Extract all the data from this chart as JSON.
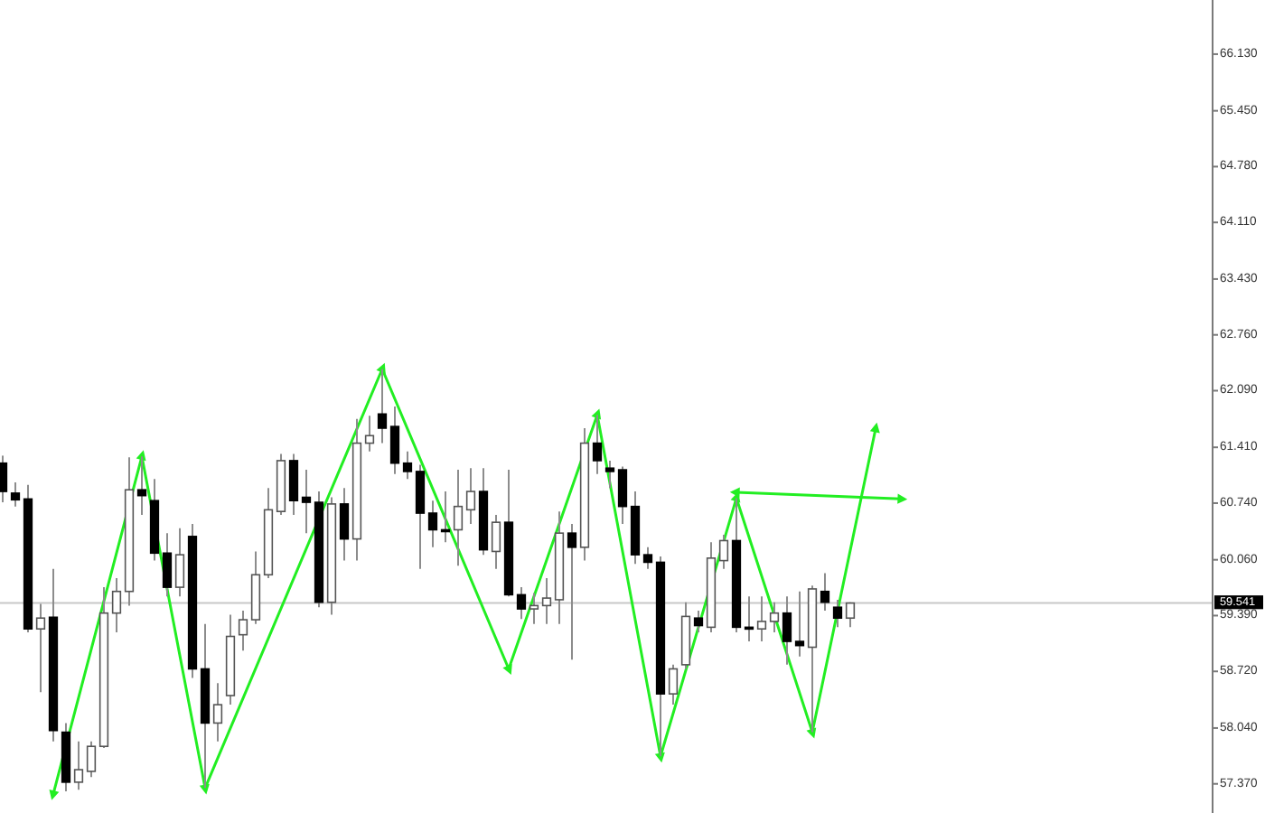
{
  "chart_data": {
    "type": "candlestick",
    "categories": [
      null,
      null,
      null,
      null,
      null,
      null,
      null,
      null,
      null,
      null,
      null,
      null,
      null,
      null,
      null,
      null,
      null,
      null,
      null,
      null,
      null,
      null,
      null,
      null,
      null,
      null,
      null,
      null,
      null,
      null,
      null,
      null,
      null,
      null,
      null,
      null,
      null,
      null,
      null,
      null,
      null,
      null,
      null,
      null,
      null,
      null,
      null,
      null,
      null,
      null,
      null,
      null,
      null,
      null,
      null,
      null,
      null,
      null,
      null,
      null,
      null,
      null,
      null,
      null,
      null,
      null,
      null,
      null,
      null,
      null,
      null,
      null,
      null,
      null,
      null,
      null,
      null,
      null,
      null,
      null,
      null,
      null,
      null,
      null,
      null,
      null,
      null,
      null,
      null,
      null,
      null,
      null,
      null,
      null,
      null,
      null
    ],
    "ohlc": [
      [
        61.22,
        61.31,
        60.75,
        60.88
      ],
      [
        60.86,
        60.99,
        60.7,
        60.78
      ],
      [
        60.79,
        60.96,
        59.19,
        59.23
      ],
      [
        59.23,
        59.53,
        58.47,
        59.36
      ],
      [
        59.37,
        59.95,
        57.88,
        58.01
      ],
      [
        57.99,
        58.1,
        57.28,
        57.39
      ],
      [
        57.39,
        57.88,
        57.3,
        57.54
      ],
      [
        57.52,
        57.88,
        57.45,
        57.82
      ],
      [
        57.82,
        59.73,
        57.8,
        59.42
      ],
      [
        59.42,
        59.84,
        59.19,
        59.68
      ],
      [
        59.68,
        61.29,
        59.51,
        60.9
      ],
      [
        60.9,
        61.3,
        60.6,
        60.83
      ],
      [
        60.77,
        61.03,
        60.05,
        60.14
      ],
      [
        60.14,
        60.38,
        59.62,
        59.73
      ],
      [
        59.73,
        60.44,
        59.62,
        60.12
      ],
      [
        60.34,
        60.49,
        58.64,
        58.75
      ],
      [
        58.75,
        59.29,
        57.32,
        58.1
      ],
      [
        58.1,
        58.58,
        57.88,
        58.32
      ],
      [
        58.43,
        59.4,
        58.32,
        59.14
      ],
      [
        59.16,
        59.45,
        58.97,
        59.34
      ],
      [
        59.34,
        60.16,
        59.29,
        59.88
      ],
      [
        59.88,
        60.92,
        59.84,
        60.66
      ],
      [
        60.64,
        61.33,
        60.6,
        61.25
      ],
      [
        61.25,
        61.33,
        60.6,
        60.77
      ],
      [
        60.81,
        61.14,
        60.38,
        60.75
      ],
      [
        60.75,
        60.88,
        59.49,
        59.55
      ],
      [
        59.55,
        60.81,
        59.4,
        60.73
      ],
      [
        60.73,
        60.92,
        60.05,
        60.31
      ],
      [
        60.31,
        61.75,
        60.05,
        61.46
      ],
      [
        61.46,
        61.79,
        61.36,
        61.55
      ],
      [
        61.81,
        62.35,
        61.46,
        61.64
      ],
      [
        61.66,
        61.9,
        61.09,
        61.22
      ],
      [
        61.22,
        61.36,
        61.03,
        61.12
      ],
      [
        61.12,
        61.2,
        59.95,
        60.62
      ],
      [
        60.62,
        60.77,
        60.21,
        60.42
      ],
      [
        60.42,
        60.88,
        60.27,
        60.4
      ],
      [
        60.42,
        61.14,
        59.99,
        60.7
      ],
      [
        60.66,
        61.16,
        60.49,
        60.88
      ],
      [
        60.88,
        61.16,
        60.12,
        60.18
      ],
      [
        60.16,
        60.6,
        59.95,
        60.51
      ],
      [
        60.51,
        61.14,
        59.62,
        59.64
      ],
      [
        59.64,
        59.73,
        59.35,
        59.47
      ],
      [
        59.47,
        59.66,
        59.29,
        59.51
      ],
      [
        59.51,
        59.84,
        59.29,
        59.6
      ],
      [
        59.58,
        60.64,
        59.29,
        60.38
      ],
      [
        60.38,
        60.49,
        58.86,
        60.21
      ],
      [
        60.21,
        61.64,
        60.05,
        61.46
      ],
      [
        61.46,
        61.8,
        61.09,
        61.25
      ],
      [
        61.16,
        61.25,
        60.92,
        61.12
      ],
      [
        61.14,
        61.18,
        60.49,
        60.7
      ],
      [
        60.7,
        60.88,
        60.01,
        60.12
      ],
      [
        60.12,
        60.21,
        59.95,
        60.03
      ],
      [
        60.03,
        60.1,
        57.7,
        58.45
      ],
      [
        58.45,
        58.8,
        58.32,
        58.75
      ],
      [
        58.8,
        59.55,
        58.75,
        59.38
      ],
      [
        59.36,
        59.45,
        59.19,
        59.27
      ],
      [
        59.25,
        60.27,
        59.19,
        60.08
      ],
      [
        60.05,
        60.36,
        59.95,
        60.29
      ],
      [
        60.29,
        60.8,
        59.19,
        59.25
      ],
      [
        59.25,
        59.62,
        59.08,
        59.23
      ],
      [
        59.23,
        59.62,
        59.08,
        59.32
      ],
      [
        59.32,
        59.55,
        59.19,
        59.42
      ],
      [
        59.42,
        59.62,
        58.8,
        59.08
      ],
      [
        59.08,
        59.68,
        58.9,
        59.03
      ],
      [
        59.01,
        59.75,
        57.99,
        59.71
      ],
      [
        59.68,
        59.9,
        59.45,
        59.55
      ],
      [
        59.49,
        59.58,
        59.25,
        59.36
      ],
      [
        59.36,
        59.55,
        59.25,
        59.54
      ],
      null,
      null,
      null,
      null,
      null,
      null,
      null,
      null,
      null,
      null,
      null,
      null,
      null,
      null,
      null,
      null,
      null,
      null,
      null,
      null,
      null,
      null,
      null,
      null,
      null,
      null,
      null,
      null
    ],
    "series": [
      {
        "type": "line",
        "color": "#22ee22",
        "marker": "triangle",
        "values": [
          null,
          null,
          null,
          null,
          57.25,
          null,
          null,
          null,
          null,
          null,
          null,
          61.3,
          null,
          null,
          null,
          null,
          57.32,
          null,
          null,
          null,
          null,
          null,
          null,
          null,
          null,
          null,
          null,
          null,
          null,
          null,
          62.35,
          null,
          null,
          null,
          null,
          null,
          null,
          null,
          null,
          null,
          58.75,
          null,
          null,
          null,
          null,
          null,
          null,
          61.8,
          null,
          null,
          null,
          null,
          57.7,
          null,
          null,
          null,
          null,
          null,
          60.8,
          null,
          null,
          null,
          null,
          null,
          57.99,
          null,
          null,
          null,
          null,
          61.63,
          null,
          null,
          null,
          null,
          null,
          null,
          null,
          null,
          null,
          null,
          null,
          null,
          null,
          null,
          null,
          null,
          null,
          null,
          null,
          null,
          null,
          null,
          null,
          null,
          null,
          null
        ]
      },
      {
        "type": "line",
        "color": "#22ee22",
        "marker": "triangle",
        "values": [
          null,
          null,
          null,
          null,
          null,
          null,
          null,
          null,
          null,
          null,
          null,
          null,
          null,
          null,
          null,
          null,
          null,
          null,
          null,
          null,
          null,
          null,
          null,
          null,
          null,
          null,
          null,
          null,
          null,
          null,
          null,
          null,
          null,
          null,
          null,
          null,
          null,
          null,
          null,
          null,
          null,
          null,
          null,
          null,
          null,
          null,
          null,
          null,
          null,
          null,
          null,
          null,
          null,
          null,
          null,
          null,
          null,
          null,
          60.87,
          null,
          null,
          null,
          null,
          null,
          null,
          null,
          null,
          null,
          null,
          null,
          null,
          60.79,
          null,
          null,
          null,
          null,
          null,
          null,
          null,
          null,
          null,
          null,
          null,
          null,
          null,
          null,
          null,
          null,
          null,
          null,
          null,
          null,
          null,
          null,
          null,
          null
        ]
      }
    ],
    "ref_lines": [
      {
        "axis": "y",
        "value": 59.541,
        "label": "59.541",
        "color": "#c8c8c8"
      }
    ],
    "ylim": [
      57.02,
      66.78
    ],
    "yticks": [
      {
        "value": 57.37,
        "label": "57.370"
      },
      {
        "value": 58.04,
        "label": "58.040"
      },
      {
        "value": 58.72,
        "label": "58.720"
      },
      {
        "value": 59.39,
        "label": "59.390"
      },
      {
        "value": 60.06,
        "label": "60.060"
      },
      {
        "value": 60.74,
        "label": "60.740"
      },
      {
        "value": 61.41,
        "label": "61.410"
      },
      {
        "value": 62.09,
        "label": "62.090"
      },
      {
        "value": 62.76,
        "label": "62.760"
      },
      {
        "value": 63.43,
        "label": "63.430"
      },
      {
        "value": 64.11,
        "label": "64.110"
      },
      {
        "value": 64.78,
        "label": "64.780"
      },
      {
        "value": 65.45,
        "label": "65.450"
      },
      {
        "value": 66.13,
        "label": "66.130"
      }
    ],
    "tick_labels": "y"
  }
}
